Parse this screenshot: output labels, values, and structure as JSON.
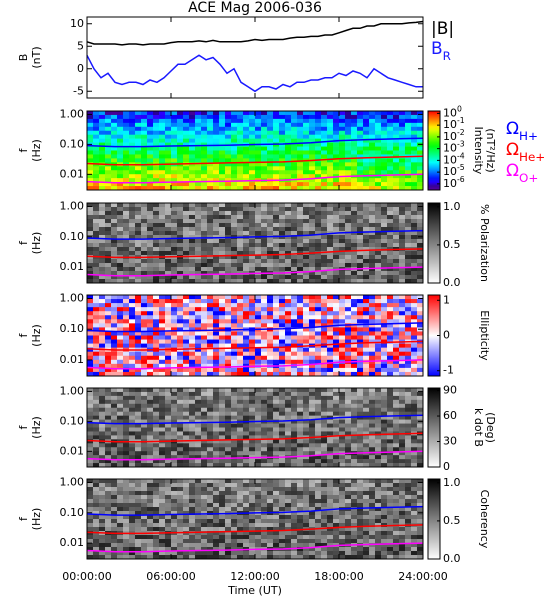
{
  "chart_data": [
    {
      "type": "line",
      "title": "ACE Mag 2006-036",
      "ylabel": [
        "B",
        "(nT)"
      ],
      "xlim": [
        0,
        24
      ],
      "ylim": [
        -6.5,
        11.5
      ],
      "yticks": [
        -5,
        0,
        5,
        10
      ],
      "x": [
        0,
        0.5,
        1,
        1.5,
        2,
        2.5,
        3,
        3.5,
        4,
        4.5,
        5,
        5.5,
        6,
        6.5,
        7,
        7.5,
        8,
        8.5,
        9,
        9.5,
        10,
        10.5,
        11,
        11.5,
        12,
        12.5,
        13,
        13.5,
        14,
        14.5,
        15,
        15.5,
        16,
        16.5,
        17,
        17.5,
        18,
        18.5,
        19,
        19.5,
        20,
        20.5,
        21,
        21.5,
        22,
        22.5,
        23,
        23.5,
        24
      ],
      "series": [
        {
          "name": "|B|",
          "color": "#000000",
          "values": [
            6,
            5.5,
            5.5,
            5.5,
            5.5,
            5.3,
            5.5,
            5.5,
            5.3,
            5.5,
            5.5,
            5.5,
            5.8,
            6,
            6,
            6,
            6.2,
            6,
            6.3,
            6,
            6,
            6,
            6,
            6.2,
            6.5,
            6.3,
            6.5,
            6.5,
            6.5,
            6.8,
            7,
            7,
            7.2,
            7.2,
            7.5,
            7.5,
            8,
            8.5,
            9,
            9,
            9.5,
            9.5,
            10,
            10,
            10,
            10,
            10.2,
            10.3,
            10.5
          ]
        },
        {
          "name": "B_R",
          "color": "#1a1aff",
          "values": [
            3,
            0,
            -2,
            -1,
            -3,
            -3.5,
            -3,
            -3,
            -3.5,
            -2.5,
            -3,
            -2,
            -0.5,
            1,
            1,
            2,
            3,
            2,
            2.5,
            1,
            -1,
            0,
            -3,
            -4,
            -5,
            -4,
            -4,
            -4.5,
            -3.5,
            -4,
            -3,
            -3,
            -2.5,
            -2.5,
            -2,
            -2,
            -1,
            -1.5,
            -0.5,
            -1,
            -2,
            0,
            -1,
            -2,
            -2.5,
            -3,
            -3.5,
            -4,
            -4
          ]
        }
      ]
    },
    {
      "type": "spectrogram",
      "ylabel": [
        "f",
        "(Hz)"
      ],
      "log_y": true,
      "xlim": [
        0,
        24
      ],
      "ylim": [
        0.003,
        1.3
      ],
      "yticks": [
        {
          "value": 0.01,
          "label": "0.01"
        },
        {
          "value": 0.1,
          "label": "0.10"
        },
        {
          "value": 1,
          "label": "1.00"
        }
      ],
      "colormap": "rainbow",
      "log_c": true,
      "clim": [
        3e-07,
        1.6
      ],
      "colorbar_label": [
        "Intensity",
        "(nT²/Hz)"
      ],
      "cticks": [
        {
          "value": 1,
          "label": "10^0"
        },
        {
          "value": 0.1,
          "label": "10^-1"
        },
        {
          "value": 0.01,
          "label": "10^-2"
        },
        {
          "value": 0.001,
          "label": "10^-3"
        },
        {
          "value": 0.0001,
          "label": "10^-4"
        },
        {
          "value": 1e-05,
          "label": "10^-5"
        },
        {
          "value": 1e-06,
          "label": "10^-6"
        }
      ],
      "legend": true,
      "x": [
        0,
        2,
        4,
        6,
        8,
        10,
        12,
        14,
        16,
        18,
        20,
        22,
        24
      ],
      "series": [
        {
          "name": "Ω_H+",
          "color": "#0000ff",
          "values": [
            0.091,
            0.084,
            0.084,
            0.088,
            0.091,
            0.094,
            0.099,
            0.103,
            0.114,
            0.134,
            0.144,
            0.152,
            0.16
          ]
        },
        {
          "name": "Ω_He+",
          "color": "#ff0000",
          "values": [
            0.023,
            0.021,
            0.021,
            0.022,
            0.023,
            0.024,
            0.025,
            0.026,
            0.029,
            0.033,
            0.036,
            0.038,
            0.04
          ]
        },
        {
          "name": "Ω_O+",
          "color": "#ff00ff",
          "values": [
            0.0057,
            0.0052,
            0.0052,
            0.0055,
            0.0057,
            0.0059,
            0.0062,
            0.0064,
            0.0071,
            0.0084,
            0.009,
            0.0095,
            0.01
          ]
        }
      ]
    },
    {
      "type": "spectrogram",
      "ylabel": [
        "f",
        "(Hz)"
      ],
      "log_y": true,
      "xlim": [
        0,
        24
      ],
      "ylim": [
        0.003,
        1.3
      ],
      "yticks": [
        {
          "value": 0.01,
          "label": "0.01"
        },
        {
          "value": 0.1,
          "label": "0.10"
        },
        {
          "value": 1,
          "label": "1.00"
        }
      ],
      "colormap": "gray",
      "clim": [
        0,
        1.05
      ],
      "colorbar_label": [
        "% Polarization"
      ],
      "cticks": [
        {
          "value": 0,
          "label": "0.0"
        },
        {
          "value": 0.5,
          "label": "0.5"
        },
        {
          "value": 1,
          "label": "1.0"
        }
      ],
      "x": [
        0,
        2,
        4,
        6,
        8,
        10,
        12,
        14,
        16,
        18,
        20,
        22,
        24
      ],
      "series": [
        {
          "name": "Ω_H+",
          "color": "#0000ff",
          "values": [
            0.091,
            0.084,
            0.084,
            0.088,
            0.091,
            0.094,
            0.099,
            0.103,
            0.114,
            0.134,
            0.144,
            0.152,
            0.16
          ]
        },
        {
          "name": "Ω_He+",
          "color": "#ff0000",
          "values": [
            0.023,
            0.021,
            0.021,
            0.022,
            0.023,
            0.024,
            0.025,
            0.026,
            0.029,
            0.033,
            0.036,
            0.038,
            0.04
          ]
        },
        {
          "name": "Ω_O+",
          "color": "#ff00ff",
          "values": [
            0.0057,
            0.0052,
            0.0052,
            0.0055,
            0.0057,
            0.0059,
            0.0062,
            0.0064,
            0.0071,
            0.0084,
            0.009,
            0.0095,
            0.01
          ]
        }
      ]
    },
    {
      "type": "spectrogram",
      "ylabel": [
        "f",
        "(Hz)"
      ],
      "log_y": true,
      "xlim": [
        0,
        24
      ],
      "ylim": [
        0.003,
        1.3
      ],
      "yticks": [
        {
          "value": 0.01,
          "label": "0.01"
        },
        {
          "value": 0.1,
          "label": "0.10"
        },
        {
          "value": 1,
          "label": "1.00"
        }
      ],
      "colormap": "bwr",
      "clim": [
        -1.15,
        1.15
      ],
      "colorbar_label": [
        "Ellipticity"
      ],
      "cticks": [
        -1,
        0,
        1
      ],
      "x": [
        0,
        2,
        4,
        6,
        8,
        10,
        12,
        14,
        16,
        18,
        20,
        22,
        24
      ],
      "series": [
        {
          "name": "Ω_H+",
          "color": "#0000ff",
          "values": [
            0.091,
            0.084,
            0.084,
            0.088,
            0.091,
            0.094,
            0.099,
            0.103,
            0.114,
            0.134,
            0.144,
            0.152,
            0.16
          ]
        },
        {
          "name": "Ω_He+",
          "color": "#ff0000",
          "values": [
            0.023,
            0.021,
            0.021,
            0.022,
            0.023,
            0.024,
            0.025,
            0.026,
            0.029,
            0.033,
            0.036,
            0.038,
            0.04
          ]
        },
        {
          "name": "Ω_O+",
          "color": "#ff00ff",
          "values": [
            0.0057,
            0.0052,
            0.0052,
            0.0055,
            0.0057,
            0.0059,
            0.0062,
            0.0064,
            0.0071,
            0.0084,
            0.009,
            0.0095,
            0.01
          ]
        }
      ]
    },
    {
      "type": "spectrogram",
      "ylabel": [
        "f",
        "(Hz)"
      ],
      "log_y": true,
      "xlim": [
        0,
        24
      ],
      "ylim": [
        0.003,
        1.3
      ],
      "yticks": [
        {
          "value": 0.01,
          "label": "0.01"
        },
        {
          "value": 0.1,
          "label": "0.10"
        },
        {
          "value": 1,
          "label": "1.00"
        }
      ],
      "colormap": "gray",
      "clim": [
        0,
        93
      ],
      "colorbar_label": [
        "k dot B",
        "(Deg)"
      ],
      "cticks": [
        0,
        30,
        60,
        90
      ],
      "x": [
        0,
        2,
        4,
        6,
        8,
        10,
        12,
        14,
        16,
        18,
        20,
        22,
        24
      ],
      "series": [
        {
          "name": "Ω_H+",
          "color": "#0000ff",
          "values": [
            0.091,
            0.084,
            0.084,
            0.088,
            0.091,
            0.094,
            0.099,
            0.103,
            0.114,
            0.134,
            0.144,
            0.152,
            0.16
          ]
        },
        {
          "name": "Ω_He+",
          "color": "#ff0000",
          "values": [
            0.023,
            0.021,
            0.021,
            0.022,
            0.023,
            0.024,
            0.025,
            0.026,
            0.029,
            0.033,
            0.036,
            0.038,
            0.04
          ]
        },
        {
          "name": "Ω_O+",
          "color": "#ff00ff",
          "values": [
            0.0057,
            0.0052,
            0.0052,
            0.0055,
            0.0057,
            0.0059,
            0.0062,
            0.0064,
            0.0071,
            0.0084,
            0.009,
            0.0095,
            0.01
          ]
        }
      ]
    },
    {
      "type": "spectrogram",
      "ylabel": [
        "f",
        "(Hz)"
      ],
      "log_y": true,
      "xlim": [
        0,
        24
      ],
      "ylim": [
        0.003,
        1.3
      ],
      "yticks": [
        {
          "value": 0.01,
          "label": "0.01"
        },
        {
          "value": 0.1,
          "label": "0.10"
        },
        {
          "value": 1,
          "label": "1.00"
        }
      ],
      "colormap": "gray",
      "clim": [
        0,
        1.05
      ],
      "colorbar_label": [
        "Coherency"
      ],
      "cticks": [
        {
          "value": 0,
          "label": "0.0"
        },
        {
          "value": 0.5,
          "label": "0.5"
        },
        {
          "value": 1,
          "label": "1.0"
        }
      ],
      "xlabel": "Time (UT)",
      "xticks": [
        {
          "value": 0,
          "label": "00:00:00"
        },
        {
          "value": 6,
          "label": "06:00:00"
        },
        {
          "value": 12,
          "label": "12:00:00"
        },
        {
          "value": 18,
          "label": "18:00:00"
        },
        {
          "value": 24,
          "label": "24:00:00"
        }
      ],
      "x": [
        0,
        2,
        4,
        6,
        8,
        10,
        12,
        14,
        16,
        18,
        20,
        22,
        24
      ],
      "series": [
        {
          "name": "Ω_H+",
          "color": "#0000ff",
          "values": [
            0.091,
            0.084,
            0.084,
            0.088,
            0.091,
            0.094,
            0.099,
            0.103,
            0.114,
            0.134,
            0.144,
            0.152,
            0.16
          ]
        },
        {
          "name": "Ω_He+",
          "color": "#ff0000",
          "values": [
            0.023,
            0.021,
            0.021,
            0.022,
            0.023,
            0.024,
            0.025,
            0.026,
            0.029,
            0.033,
            0.036,
            0.038,
            0.04
          ]
        },
        {
          "name": "Ω_O+",
          "color": "#ff00ff",
          "values": [
            0.0057,
            0.0052,
            0.0052,
            0.0055,
            0.0057,
            0.0059,
            0.0062,
            0.0064,
            0.0071,
            0.0084,
            0.009,
            0.0095,
            0.01
          ]
        }
      ]
    }
  ]
}
